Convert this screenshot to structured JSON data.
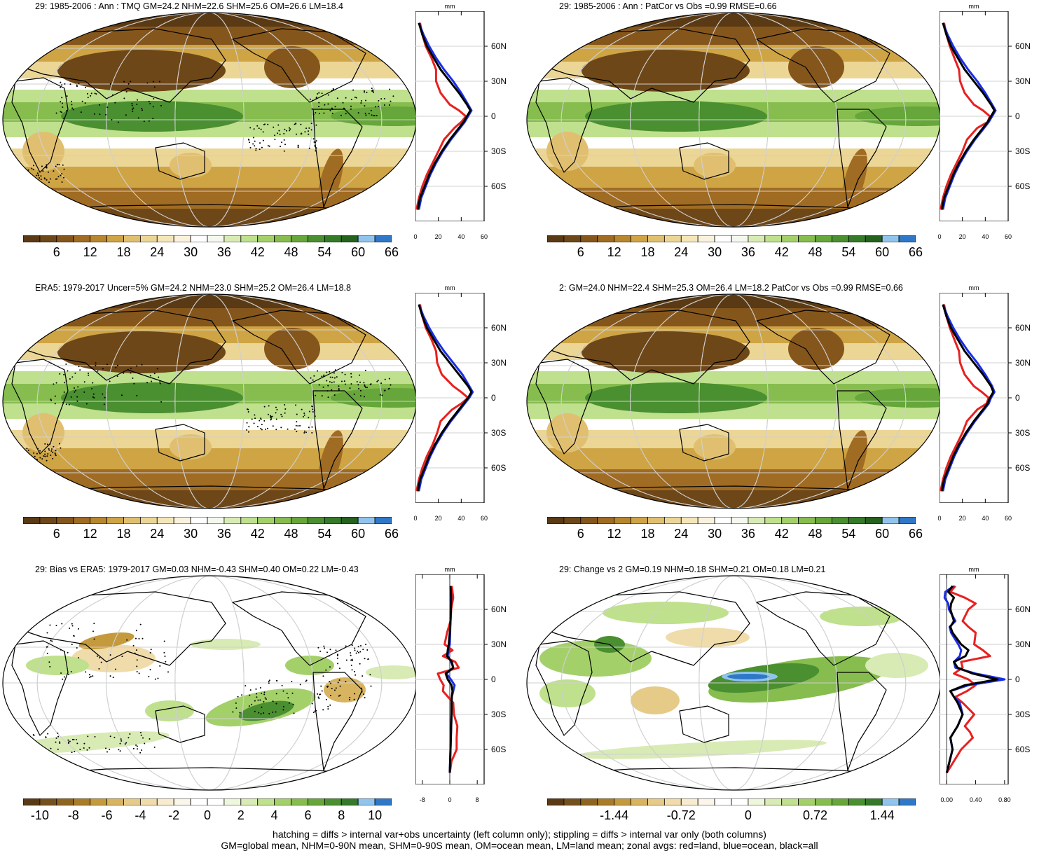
{
  "footer": {
    "line1": "hatching = diffs > internal var+obs uncertainty (left column only); stippling = diffs > internal var only (both columns)",
    "line2": "GM=global mean, NHM=0-90N mean, SHM=0-90S mean, OM=ocean mean, LM=land mean; zonal avgs: red=land, blue=ocean, black=all"
  },
  "palettes": {
    "abs": [
      "#5a3a14",
      "#6e4718",
      "#85561c",
      "#a06b22",
      "#b8862d",
      "#cfa444",
      "#e0c070",
      "#ecd696",
      "#f4e6b8",
      "#faf2dc",
      "#ffffff",
      "#f4f8ee",
      "#d8ebb4",
      "#bfe08c",
      "#a4d06a",
      "#86bd4e",
      "#66a63a",
      "#4a8f30",
      "#347a28",
      "#24621e",
      "#90c4ec",
      "#2f78c8"
    ],
    "diff": [
      "#5a3a14",
      "#74501c",
      "#8e6420",
      "#aa7c28",
      "#c49a3c",
      "#d8b460",
      "#e6ca88",
      "#f0dcaa",
      "#f8ecd0",
      "#fbf6ea",
      "#ffffff",
      "#ffffff",
      "#eef6dc",
      "#d8ebb4",
      "#bfe08c",
      "#a4d06a",
      "#86bd4e",
      "#66a63a",
      "#4a8f30",
      "#347a28",
      "#90c4ec",
      "#2f78c8"
    ]
  },
  "panels": [
    {
      "title": "29: 1985-2006 : Ann : TMQ GM=24.2 NHM=22.6 SHM=25.6 OM=26.6 LM=18.4",
      "map_kind": "abs",
      "stipple": true,
      "colorbar": {
        "labels": [
          "6",
          "12",
          "18",
          "24",
          "30",
          "36",
          "42",
          "48",
          "54",
          "60",
          "66"
        ],
        "kind": "abs"
      },
      "zonal": {
        "unit": "mm",
        "lat_ticks": [
          "60N",
          "30N",
          "0",
          "30S",
          "60S"
        ],
        "x_ticks": [
          "0",
          "20",
          "40",
          "60"
        ],
        "xlim": [
          0,
          60
        ],
        "lat": [
          80,
          70,
          60,
          50,
          40,
          30,
          20,
          10,
          5,
          0,
          -5,
          -10,
          -20,
          -30,
          -40,
          -50,
          -60,
          -70,
          -80
        ],
        "all": [
          3,
          6,
          10,
          16,
          22,
          30,
          38,
          45,
          48,
          45,
          42,
          38,
          30,
          23,
          17,
          12,
          8,
          4,
          2
        ],
        "ocean": [
          3,
          7,
          12,
          18,
          25,
          33,
          40,
          46,
          49,
          46,
          43,
          39,
          31,
          24,
          18,
          13,
          9,
          5,
          3
        ],
        "land": [
          4,
          6,
          9,
          14,
          18,
          18,
          22,
          30,
          38,
          44,
          40,
          34,
          25,
          20,
          15,
          10,
          6,
          3,
          1
        ]
      }
    },
    {
      "title": "29: 1985-2006 : Ann : PatCor vs Obs =0.99 RMSE=0.66",
      "map_kind": "abs",
      "stipple": false,
      "colorbar": {
        "labels": [
          "6",
          "12",
          "18",
          "24",
          "30",
          "36",
          "42",
          "48",
          "54",
          "60",
          "66"
        ],
        "kind": "abs"
      },
      "zonal": {
        "unit": "mm",
        "lat_ticks": [
          "60N",
          "30N",
          "0",
          "30S",
          "60S"
        ],
        "x_ticks": [
          "0",
          "20",
          "40",
          "60"
        ],
        "xlim": [
          0,
          60
        ],
        "lat": [
          80,
          70,
          60,
          50,
          40,
          30,
          20,
          10,
          5,
          0,
          -5,
          -10,
          -20,
          -30,
          -40,
          -50,
          -60,
          -70,
          -80
        ],
        "all": [
          3,
          6,
          10,
          16,
          22,
          30,
          38,
          45,
          48,
          45,
          42,
          38,
          30,
          23,
          17,
          12,
          8,
          4,
          2
        ],
        "ocean": [
          3,
          7,
          12,
          18,
          25,
          33,
          40,
          46,
          49,
          46,
          43,
          39,
          31,
          24,
          18,
          13,
          9,
          5,
          3
        ],
        "land": [
          4,
          6,
          9,
          13,
          17,
          18,
          22,
          30,
          38,
          44,
          42,
          33,
          24,
          20,
          15,
          10,
          6,
          3,
          1
        ]
      }
    },
    {
      "title": "ERA5: 1979-2017 Uncer=5% GM=24.2 NHM=23.0 SHM=25.2 OM=26.4 LM=18.8",
      "map_kind": "abs",
      "stipple": true,
      "colorbar": {
        "labels": [
          "6",
          "12",
          "18",
          "24",
          "30",
          "36",
          "42",
          "48",
          "54",
          "60",
          "66"
        ],
        "kind": "abs"
      },
      "zonal": {
        "unit": "mm",
        "lat_ticks": [
          "60N",
          "30N",
          "0",
          "30S",
          "60S"
        ],
        "x_ticks": [
          "0",
          "20",
          "40",
          "60"
        ],
        "xlim": [
          0,
          60
        ],
        "lat": [
          80,
          70,
          60,
          50,
          40,
          30,
          20,
          10,
          5,
          0,
          -5,
          -10,
          -20,
          -30,
          -40,
          -50,
          -60,
          -70,
          -80
        ],
        "all": [
          3,
          6,
          10,
          16,
          22,
          30,
          38,
          46,
          49,
          46,
          42,
          38,
          30,
          23,
          17,
          12,
          8,
          4,
          2
        ],
        "ocean": [
          3,
          7,
          12,
          18,
          25,
          33,
          41,
          47,
          50,
          47,
          43,
          39,
          31,
          24,
          18,
          13,
          9,
          5,
          3
        ],
        "land": [
          4,
          6,
          9,
          14,
          18,
          19,
          23,
          33,
          40,
          46,
          40,
          32,
          22,
          19,
          15,
          10,
          6,
          3,
          1
        ]
      }
    },
    {
      "title": "2: GM=24.0 NHM=22.4 SHM=25.3 OM=26.4 LM=18.2 PatCor vs Obs =0.99 RMSE=0.66",
      "map_kind": "abs",
      "stipple": false,
      "colorbar": {
        "labels": [
          "6",
          "12",
          "18",
          "24",
          "30",
          "36",
          "42",
          "48",
          "54",
          "60",
          "66"
        ],
        "kind": "abs"
      },
      "zonal": {
        "unit": "mm",
        "lat_ticks": [
          "60N",
          "30N",
          "0",
          "30S",
          "60S"
        ],
        "x_ticks": [
          "0",
          "20",
          "40",
          "60"
        ],
        "xlim": [
          0,
          60
        ],
        "lat": [
          80,
          70,
          60,
          50,
          40,
          30,
          20,
          10,
          5,
          0,
          -5,
          -10,
          -20,
          -30,
          -40,
          -50,
          -60,
          -70,
          -80
        ],
        "all": [
          3,
          6,
          10,
          16,
          22,
          30,
          38,
          45,
          47,
          44,
          42,
          38,
          30,
          23,
          17,
          12,
          8,
          4,
          2
        ],
        "ocean": [
          3,
          7,
          12,
          18,
          25,
          33,
          40,
          46,
          48,
          45,
          43,
          39,
          31,
          24,
          18,
          13,
          9,
          5,
          3
        ],
        "land": [
          4,
          6,
          9,
          13,
          17,
          18,
          22,
          30,
          37,
          43,
          41,
          33,
          24,
          20,
          15,
          10,
          6,
          3,
          1
        ]
      }
    },
    {
      "title": "29: Bias vs ERA5: 1979-2017 GM=0.03 NHM=-0.43 SHM=0.40 OM=0.22 LM=-0.43",
      "map_kind": "bias",
      "stipple": true,
      "colorbar": {
        "labels": [
          "-10",
          "-8",
          "-6",
          "-4",
          "-2",
          "0",
          "2",
          "4",
          "6",
          "8",
          "10"
        ],
        "kind": "diff"
      },
      "zonal": {
        "unit": "mm",
        "lat_ticks": [
          "60N",
          "30N",
          "0",
          "30S",
          "60S"
        ],
        "x_ticks": [
          "-8",
          "0",
          "8"
        ],
        "xlim": [
          -10,
          10
        ],
        "lat": [
          80,
          70,
          60,
          50,
          40,
          30,
          25,
          20,
          15,
          10,
          5,
          0,
          -5,
          -10,
          -15,
          -20,
          -30,
          -40,
          -50,
          -60,
          -70,
          -80
        ],
        "all": [
          0.2,
          0.4,
          0.3,
          0.2,
          0.0,
          -0.3,
          -0.6,
          -0.8,
          0.6,
          1.0,
          -1.2,
          -0.6,
          0.5,
          0.8,
          0.6,
          0.5,
          0.5,
          0.4,
          0.3,
          0.2,
          0.1,
          0.0
        ],
        "ocean": [
          0.2,
          0.3,
          0.3,
          0.2,
          0.1,
          0.0,
          -0.4,
          -0.6,
          0.4,
          1.0,
          -1.0,
          0.3,
          1.4,
          1.0,
          0.6,
          0.5,
          0.5,
          0.4,
          0.3,
          0.2,
          0.1,
          0.0
        ],
        "land": [
          0.6,
          1.0,
          0.4,
          0.2,
          -0.8,
          -1.5,
          0.8,
          -2.0,
          1.6,
          2.6,
          -3.5,
          -2.8,
          -1.8,
          -2.0,
          -0.5,
          1.0,
          1.2,
          2.2,
          2.0,
          2.0,
          0.5,
          0.0
        ]
      }
    },
    {
      "title": "29: Change vs 2 GM=0.19 NHM=0.18 SHM=0.21 OM=0.18 LM=0.21",
      "map_kind": "change",
      "stipple": false,
      "colorbar": {
        "labels": [
          "-1.44",
          "-0.72",
          "0",
          "0.72",
          "1.44"
        ],
        "kind": "diff"
      },
      "zonal": {
        "unit": "mm",
        "lat_ticks": [
          "60N",
          "30N",
          "0",
          "30S",
          "60S"
        ],
        "x_ticks": [
          "0.00",
          "0.40",
          "0.80"
        ],
        "xlim": [
          -0.1,
          0.85
        ],
        "lat": [
          80,
          75,
          70,
          65,
          60,
          50,
          45,
          40,
          30,
          25,
          20,
          15,
          10,
          5,
          0,
          -5,
          -10,
          -15,
          -20,
          -30,
          -40,
          -45,
          -50,
          -60,
          -70,
          -80
        ],
        "all": [
          0.08,
          0.02,
          0.1,
          0.06,
          0.05,
          0.1,
          0.05,
          0.08,
          0.2,
          0.3,
          0.26,
          0.1,
          0.15,
          0.36,
          0.7,
          0.25,
          0.05,
          0.1,
          0.15,
          0.22,
          0.15,
          0.1,
          0.05,
          0.08,
          0.04,
          0.0
        ],
        "ocean": [
          0.1,
          -0.02,
          -0.03,
          0.02,
          0.03,
          0.12,
          0.04,
          0.06,
          0.16,
          0.2,
          0.18,
          0.1,
          0.12,
          0.4,
          0.8,
          0.3,
          0.05,
          0.1,
          0.18,
          0.22,
          0.15,
          0.1,
          0.05,
          0.08,
          0.04,
          0.0
        ],
        "land": [
          0.12,
          0.05,
          0.25,
          0.4,
          0.3,
          0.22,
          0.3,
          0.4,
          0.38,
          0.5,
          0.6,
          0.2,
          0.22,
          0.1,
          0.3,
          0.4,
          0.28,
          0.12,
          0.22,
          0.38,
          0.25,
          0.32,
          0.36,
          0.2,
          0.1,
          0.0
        ]
      }
    }
  ]
}
